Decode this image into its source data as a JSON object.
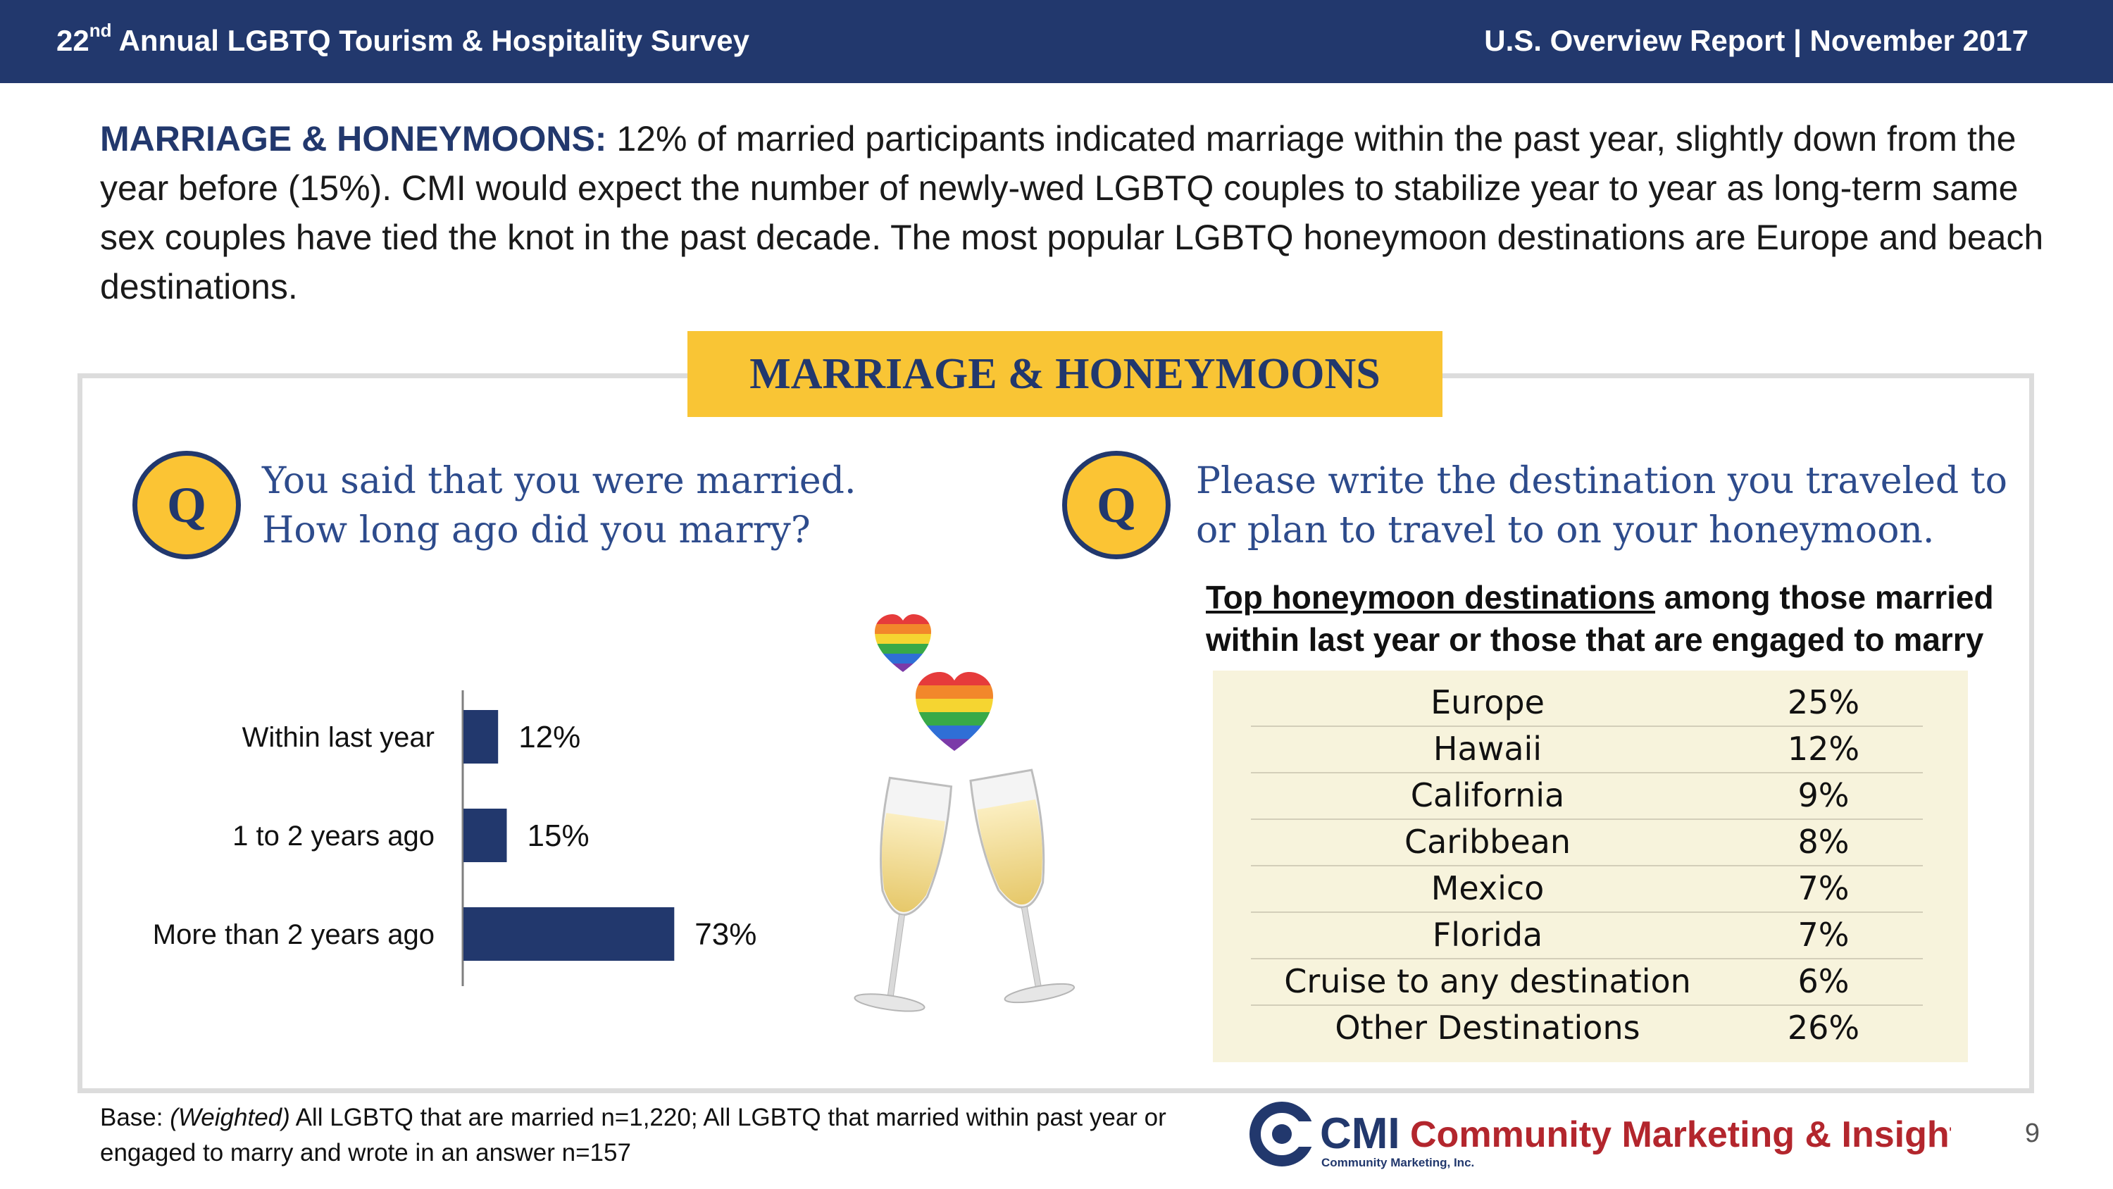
{
  "header": {
    "title_prefix": "22",
    "title_sup": "nd",
    "title_rest": " Annual LGBTQ Tourism & Hospitality Survey",
    "right": "U.S. Overview Report | November 2017"
  },
  "summary": {
    "lead": "MARRIAGE & HONEYMOONS:",
    "text": " 12% of married participants indicated marriage within the past year, slightly down from the year before (15%).  CMI would expect the number of newly-wed LGBTQ couples to stabilize year to year as long-term same sex couples have tied the knot in the past decade. The most popular LGBTQ honeymoon destinations are Europe and beach destinations."
  },
  "banner": "MARRIAGE & HONEYMOONS",
  "q_badge": "Q",
  "question_left": [
    "You said that you were married.",
    "How long ago did you marry?"
  ],
  "question_right": [
    "Please write the destination you traveled to",
    "or plan to travel to on your honeymoon."
  ],
  "chart_data": {
    "type": "bar",
    "orientation": "horizontal",
    "categories": [
      "Within last year",
      "1 to 2 years ago",
      "More than 2 years ago"
    ],
    "values": [
      12,
      15,
      73
    ],
    "value_labels": [
      "12%",
      "15%",
      "73%"
    ],
    "xlim": [
      0,
      100
    ],
    "bar_color": "#22386d",
    "grid": false
  },
  "destinations": {
    "caption_underlined": "Top honeymoon destinations",
    "caption_rest_line1": " among those married",
    "caption_line2": "within last year or those that are engaged to marry",
    "rows": [
      {
        "name": "Europe",
        "value": "25%"
      },
      {
        "name": "Hawaii",
        "value": "12%"
      },
      {
        "name": "California",
        "value": "9%"
      },
      {
        "name": "Caribbean",
        "value": "8%"
      },
      {
        "name": "Mexico",
        "value": "7%"
      },
      {
        "name": "Florida",
        "value": "7%"
      },
      {
        "name": "Cruise to any destination",
        "value": "6%"
      },
      {
        "name": "Other Destinations",
        "value": "26%"
      }
    ]
  },
  "footnote": {
    "prefix": "Base: ",
    "italic": "(Weighted)",
    "text": " All LGBTQ that are married n=1,220; All LGBTQ that married within past year or engaged to marry and wrote in an answer n=157"
  },
  "logo": {
    "cmi": "CMI",
    "name": "Community Marketing & Insights",
    "sub": "Community Marketing, Inc."
  },
  "page_number": "9",
  "colors": {
    "navy": "#22386d",
    "gold": "#f9c535",
    "question_blue": "#2d4b8c",
    "logo_red": "#b3262d",
    "table_bg": "#f7f3dc"
  }
}
